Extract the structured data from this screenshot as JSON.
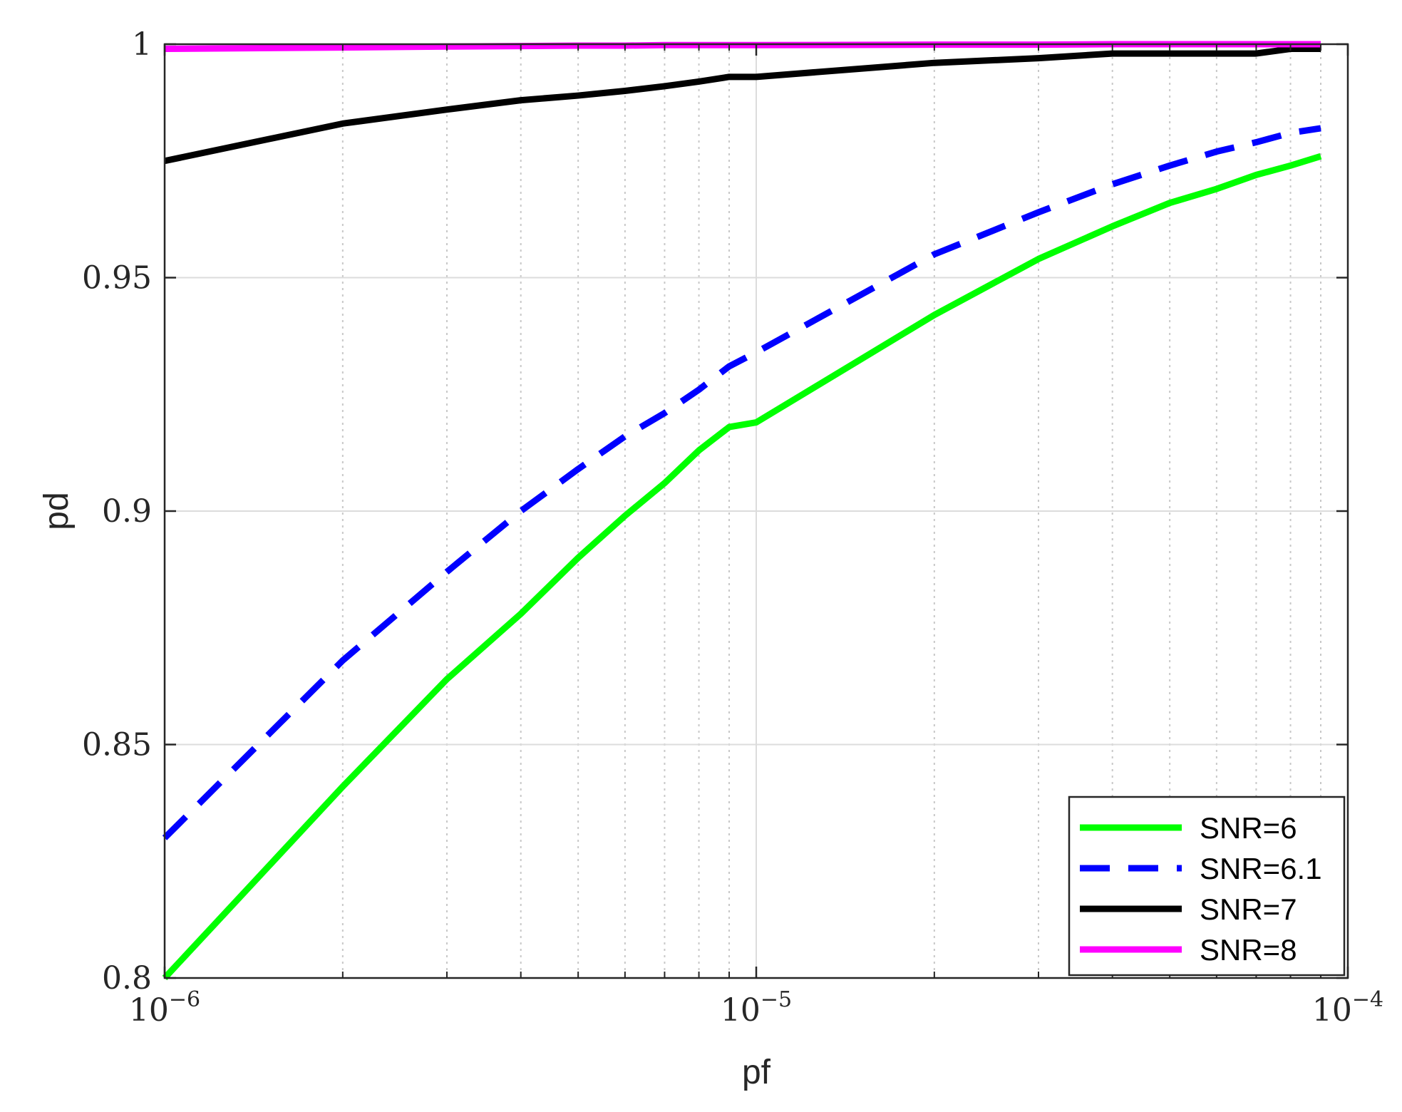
{
  "chart_data": {
    "type": "line",
    "xlabel": "pf",
    "ylabel": "pd",
    "x_scale": "log",
    "xlim": [
      1e-06,
      0.0001
    ],
    "ylim": [
      0.8,
      1.0
    ],
    "grid": true,
    "legend_position": "bottom-right",
    "x_ticks": [
      {
        "value": 1e-06,
        "base": "10",
        "exp": "−6"
      },
      {
        "value": 1e-05,
        "base": "10",
        "exp": "−5"
      },
      {
        "value": 0.0001,
        "base": "10",
        "exp": "−4"
      }
    ],
    "y_ticks": [
      {
        "value": 0.8,
        "label": "0.8"
      },
      {
        "value": 0.85,
        "label": "0.85"
      },
      {
        "value": 0.9,
        "label": "0.9"
      },
      {
        "value": 0.95,
        "label": "0.95"
      },
      {
        "value": 1.0,
        "label": "1"
      }
    ],
    "x": [
      1e-06,
      2e-06,
      3e-06,
      4e-06,
      5e-06,
      6e-06,
      7e-06,
      8e-06,
      9e-06,
      1e-05,
      2e-05,
      3e-05,
      4e-05,
      5e-05,
      6e-05,
      7e-05,
      8e-05,
      9e-05
    ],
    "series": [
      {
        "name": "SNR=6",
        "color": "#00ff00",
        "dash": "solid",
        "values": [
          0.8,
          0.841,
          0.864,
          0.878,
          0.89,
          0.899,
          0.906,
          0.913,
          0.918,
          0.919,
          0.942,
          0.954,
          0.961,
          0.966,
          0.969,
          0.972,
          0.974,
          0.976
        ]
      },
      {
        "name": "SNR=6.1",
        "color": "#0000ff",
        "dash": "dashed",
        "values": [
          0.83,
          0.868,
          0.887,
          0.9,
          0.909,
          0.916,
          0.921,
          0.926,
          0.931,
          0.934,
          0.955,
          0.964,
          0.97,
          0.974,
          0.977,
          0.979,
          0.981,
          0.982
        ]
      },
      {
        "name": "SNR=7",
        "color": "#000000",
        "dash": "solid",
        "values": [
          0.975,
          0.983,
          0.986,
          0.988,
          0.989,
          0.99,
          0.991,
          0.992,
          0.993,
          0.993,
          0.996,
          0.997,
          0.998,
          0.998,
          0.998,
          0.998,
          0.999,
          0.999
        ]
      },
      {
        "name": "SNR=8",
        "color": "#ff00ff",
        "dash": "solid",
        "values": [
          0.999,
          0.9993,
          0.9995,
          0.9996,
          0.9997,
          0.9997,
          0.9998,
          0.9998,
          0.9998,
          0.9998,
          0.9999,
          0.9999,
          1.0,
          1.0,
          1.0,
          1.0,
          1.0,
          1.0
        ]
      }
    ]
  }
}
